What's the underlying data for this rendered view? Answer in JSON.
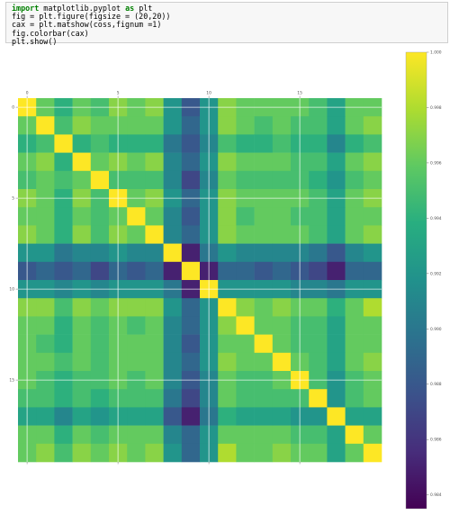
{
  "code_cell": {
    "lines": [
      {
        "keyword": "import",
        "rest": " matplotlib.pyplot ",
        "keyword2": "as",
        "rest2": " plt"
      },
      {
        "text": "fig = plt.figure(figsize = (20,20))"
      },
      {
        "text": "cax = plt.matshow(coss,fignum =1)"
      },
      {
        "text": "fig.colorbar(cax)"
      },
      {
        "text": "plt.show()"
      }
    ]
  },
  "chart_data": {
    "type": "heatmap",
    "title": "",
    "n": 20,
    "x_ticks": [
      0,
      5,
      10,
      15
    ],
    "y_ticks": [
      0,
      5,
      10,
      15
    ],
    "x_tick_labels": [
      "0",
      "5",
      "10",
      "15"
    ],
    "y_tick_labels": [
      "0",
      "5",
      "10",
      "15"
    ],
    "colormap": "viridis",
    "vmin": 0.9835,
    "vmax": 1.0,
    "colorbar_ticks": [
      1.0,
      0.998,
      0.996,
      0.994,
      0.992,
      0.99,
      0.988,
      0.986,
      0.984
    ],
    "colorbar_tick_labels": [
      "1.000",
      "0.998",
      "0.996",
      "0.994",
      "0.992",
      "0.990",
      "0.988",
      "0.986",
      "0.984"
    ],
    "matrix": [
      [
        1.0,
        0.996,
        0.994,
        0.996,
        0.995,
        0.997,
        0.996,
        0.997,
        0.992,
        0.988,
        0.992,
        0.997,
        0.996,
        0.996,
        0.996,
        0.996,
        0.995,
        0.993,
        0.996,
        0.996
      ],
      [
        0.996,
        1.0,
        0.995,
        0.997,
        0.996,
        0.996,
        0.996,
        0.996,
        0.992,
        0.989,
        0.992,
        0.997,
        0.996,
        0.995,
        0.996,
        0.995,
        0.995,
        0.993,
        0.996,
        0.997
      ],
      [
        0.994,
        0.995,
        1.0,
        0.994,
        0.995,
        0.994,
        0.994,
        0.994,
        0.99,
        0.988,
        0.991,
        0.995,
        0.994,
        0.994,
        0.995,
        0.994,
        0.994,
        0.991,
        0.994,
        0.995
      ],
      [
        0.996,
        0.997,
        0.994,
        1.0,
        0.996,
        0.997,
        0.996,
        0.997,
        0.991,
        0.989,
        0.992,
        0.997,
        0.996,
        0.996,
        0.996,
        0.995,
        0.995,
        0.993,
        0.996,
        0.997
      ],
      [
        0.995,
        0.996,
        0.995,
        0.996,
        1.0,
        0.995,
        0.995,
        0.995,
        0.991,
        0.987,
        0.991,
        0.996,
        0.995,
        0.995,
        0.995,
        0.995,
        0.994,
        0.992,
        0.995,
        0.996
      ],
      [
        0.997,
        0.996,
        0.994,
        0.997,
        0.995,
        1.0,
        0.996,
        0.997,
        0.992,
        0.989,
        0.992,
        0.997,
        0.996,
        0.996,
        0.996,
        0.996,
        0.995,
        0.993,
        0.996,
        0.997
      ],
      [
        0.996,
        0.996,
        0.994,
        0.996,
        0.995,
        0.996,
        1.0,
        0.996,
        0.991,
        0.988,
        0.992,
        0.997,
        0.995,
        0.996,
        0.996,
        0.995,
        0.995,
        0.993,
        0.996,
        0.996
      ],
      [
        0.997,
        0.996,
        0.994,
        0.997,
        0.995,
        0.997,
        0.996,
        1.0,
        0.991,
        0.989,
        0.992,
        0.997,
        0.996,
        0.996,
        0.996,
        0.996,
        0.995,
        0.993,
        0.996,
        0.997
      ],
      [
        0.992,
        0.992,
        0.99,
        0.991,
        0.991,
        0.992,
        0.991,
        0.991,
        1.0,
        0.985,
        0.99,
        0.992,
        0.991,
        0.991,
        0.991,
        0.991,
        0.99,
        0.988,
        0.991,
        0.992
      ],
      [
        0.988,
        0.989,
        0.988,
        0.989,
        0.987,
        0.989,
        0.988,
        0.989,
        0.985,
        1.0,
        0.985,
        0.989,
        0.989,
        0.988,
        0.989,
        0.988,
        0.987,
        0.985,
        0.989,
        0.989
      ],
      [
        0.992,
        0.992,
        0.991,
        0.992,
        0.991,
        0.992,
        0.992,
        0.992,
        0.99,
        0.985,
        1.0,
        0.992,
        0.992,
        0.992,
        0.992,
        0.991,
        0.991,
        0.99,
        0.992,
        0.992
      ],
      [
        0.997,
        0.997,
        0.995,
        0.997,
        0.996,
        0.997,
        0.997,
        0.997,
        0.992,
        0.989,
        0.992,
        1.0,
        0.997,
        0.996,
        0.997,
        0.996,
        0.996,
        0.994,
        0.996,
        0.998
      ],
      [
        0.996,
        0.996,
        0.994,
        0.996,
        0.995,
        0.996,
        0.995,
        0.996,
        0.991,
        0.989,
        0.992,
        0.997,
        1.0,
        0.996,
        0.996,
        0.995,
        0.995,
        0.993,
        0.996,
        0.996
      ],
      [
        0.996,
        0.995,
        0.994,
        0.996,
        0.995,
        0.996,
        0.996,
        0.996,
        0.991,
        0.988,
        0.992,
        0.996,
        0.996,
        1.0,
        0.996,
        0.995,
        0.995,
        0.993,
        0.996,
        0.996
      ],
      [
        0.996,
        0.996,
        0.995,
        0.996,
        0.995,
        0.996,
        0.996,
        0.996,
        0.991,
        0.989,
        0.992,
        0.997,
        0.996,
        0.996,
        1.0,
        0.996,
        0.995,
        0.993,
        0.996,
        0.997
      ],
      [
        0.996,
        0.995,
        0.994,
        0.995,
        0.995,
        0.996,
        0.995,
        0.996,
        0.991,
        0.988,
        0.991,
        0.996,
        0.995,
        0.995,
        0.996,
        1.0,
        0.995,
        0.992,
        0.995,
        0.996
      ],
      [
        0.995,
        0.995,
        0.994,
        0.995,
        0.994,
        0.995,
        0.995,
        0.995,
        0.99,
        0.987,
        0.991,
        0.996,
        0.995,
        0.995,
        0.995,
        0.995,
        1.0,
        0.992,
        0.995,
        0.996
      ],
      [
        0.993,
        0.993,
        0.991,
        0.993,
        0.992,
        0.993,
        0.993,
        0.993,
        0.988,
        0.985,
        0.99,
        0.994,
        0.993,
        0.993,
        0.993,
        0.992,
        0.992,
        1.0,
        0.993,
        0.993
      ],
      [
        0.996,
        0.996,
        0.994,
        0.996,
        0.995,
        0.996,
        0.996,
        0.996,
        0.991,
        0.989,
        0.992,
        0.996,
        0.996,
        0.996,
        0.996,
        0.995,
        0.995,
        0.993,
        1.0,
        0.996
      ],
      [
        0.996,
        0.997,
        0.995,
        0.997,
        0.996,
        0.997,
        0.996,
        0.997,
        0.992,
        0.989,
        0.992,
        0.998,
        0.996,
        0.996,
        0.997,
        0.996,
        0.996,
        0.993,
        0.996,
        1.0
      ]
    ]
  }
}
